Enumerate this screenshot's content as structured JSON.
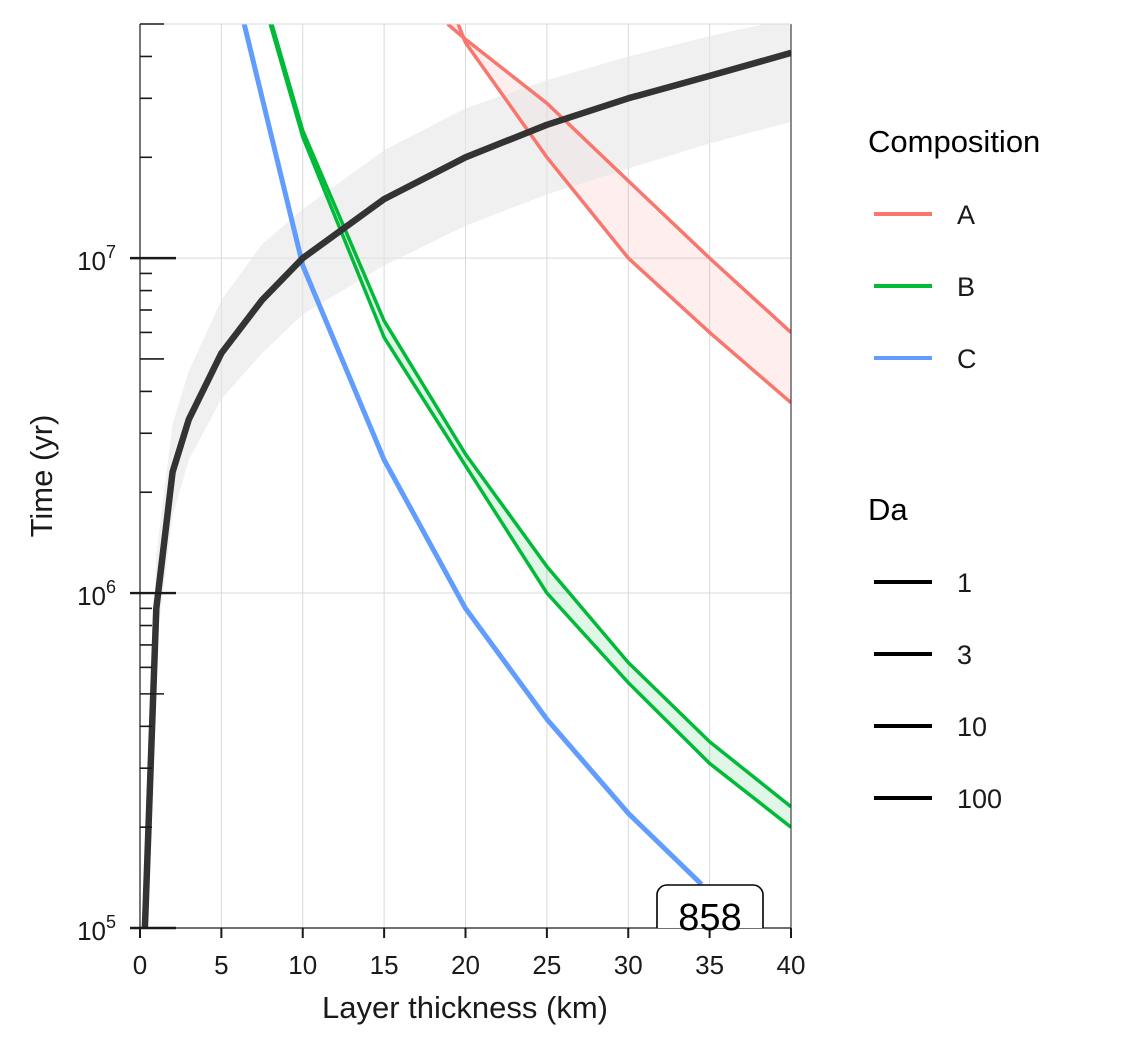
{
  "chart_data": {
    "type": "line",
    "xlabel": "Layer thickness (km)",
    "ylabel": "Time (yr)",
    "xlim": [
      0,
      40
    ],
    "ylim": [
      100000,
      50000000
    ],
    "y_scale": "log",
    "grid": true,
    "x_ticks": [
      "0",
      "5",
      "10",
      "15",
      "20",
      "25",
      "30",
      "35",
      "40"
    ],
    "y_ticks": [
      {
        "base": "10",
        "exp": "5"
      },
      {
        "base": "10",
        "exp": "6"
      },
      {
        "base": "10",
        "exp": "7"
      }
    ],
    "series": [
      {
        "group": "A",
        "color": "#F8766D",
        "x": [
          18.9,
          20,
          25,
          30,
          35,
          40
        ],
        "y_upper": [
          50000000,
          45000000,
          29000000,
          17000000,
          10000000,
          6000000
        ],
        "y_lower": [
          60000000,
          44000000,
          20000000,
          10000000,
          6000000,
          3700000
        ]
      },
      {
        "group": "B",
        "color": "#00BA38",
        "x": [
          8,
          10,
          15,
          20,
          25,
          30,
          35,
          40
        ],
        "y_upper": [
          52000000,
          24000000,
          6500000,
          2600000,
          1200000,
          620000,
          360000,
          230000
        ],
        "y_lower": [
          50000000,
          23000000,
          5800000,
          2400000,
          1000000,
          540000,
          310000,
          200000
        ]
      },
      {
        "group": "C",
        "color": "#619CFF",
        "x": [
          6.4,
          10,
          15,
          20,
          25,
          30,
          34.5
        ],
        "y": [
          50000000,
          9500000,
          2500000,
          900000,
          420000,
          220000,
          135000
        ]
      },
      {
        "group": "reference",
        "color": "#333333",
        "x": [
          0.3,
          1,
          2,
          3,
          5,
          7.5,
          10,
          15,
          20,
          25,
          30,
          35,
          40
        ],
        "y": [
          100000,
          900000,
          2300000,
          3300000,
          5200000,
          7500000,
          10000000,
          15000000,
          20000000,
          25000000,
          30000000,
          35000000,
          41000000
        ],
        "y_band": [
          [
            100000,
            150000
          ],
          [
            700000,
            1300000
          ],
          [
            1700000,
            3200000
          ],
          [
            2500000,
            4600000
          ],
          [
            3800000,
            7500000
          ],
          [
            5200000,
            11000000
          ],
          [
            6800000,
            14000000
          ],
          [
            9500000,
            21000000
          ],
          [
            12500000,
            28000000
          ],
          [
            15500000,
            34000000
          ],
          [
            18500000,
            40000000
          ],
          [
            22000000,
            46000000
          ],
          [
            25500000,
            52000000
          ]
        ]
      }
    ],
    "legends": [
      {
        "title": "Composition",
        "items": [
          {
            "label": "A",
            "color": "#F8766D"
          },
          {
            "label": "B",
            "color": "#00BA38"
          },
          {
            "label": "C",
            "color": "#619CFF"
          }
        ]
      },
      {
        "title": "Da",
        "items": [
          {
            "label": "1",
            "color": "#000000"
          },
          {
            "label": "3",
            "color": "#000000"
          },
          {
            "label": "10",
            "color": "#000000"
          },
          {
            "label": "100",
            "color": "#000000"
          }
        ]
      }
    ],
    "legend_position": "right",
    "annotation": "858"
  }
}
